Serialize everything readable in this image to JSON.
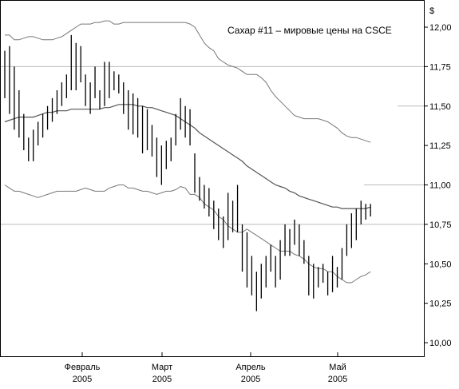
{
  "chart_data": {
    "type": "ohlc",
    "title": "Сахар #11 – мировые цены на CSCE",
    "ylabel": "$",
    "ylim": [
      10.0,
      12.0
    ],
    "yticks": [
      "10,00",
      "10,25",
      "10,50",
      "10,75",
      "11,00",
      "11,25",
      "11,50",
      "11,75",
      "12,00"
    ],
    "xticks": [
      {
        "line1": "Февраль",
        "line2": "2005"
      },
      {
        "line1": "Март",
        "line2": "2005"
      },
      {
        "line1": "Апрель",
        "line2": "2005"
      },
      {
        "line1": "Май",
        "line2": "2005"
      }
    ],
    "grid_y": [
      10.75,
      11.75
    ],
    "colors": {
      "bars": "#000000",
      "ma": "#555555",
      "bands": "#777777",
      "grid": "#bbbbbb"
    },
    "bars": [
      [
        11.85,
        11.55
      ],
      [
        11.88,
        11.45
      ],
      [
        11.75,
        11.35
      ],
      [
        11.6,
        11.3
      ],
      [
        11.45,
        11.22
      ],
      [
        11.3,
        11.15
      ],
      [
        11.35,
        11.15
      ],
      [
        11.4,
        11.25
      ],
      [
        11.45,
        11.3
      ],
      [
        11.5,
        11.35
      ],
      [
        11.55,
        11.4
      ],
      [
        11.6,
        11.45
      ],
      [
        11.65,
        11.5
      ],
      [
        11.7,
        11.55
      ],
      [
        11.95,
        11.6
      ],
      [
        11.9,
        11.6
      ],
      [
        11.88,
        11.65
      ],
      [
        11.7,
        11.5
      ],
      [
        11.65,
        11.45
      ],
      [
        11.75,
        11.55
      ],
      [
        11.6,
        11.48
      ],
      [
        11.78,
        11.5
      ],
      [
        11.78,
        11.55
      ],
      [
        11.72,
        11.6
      ],
      [
        11.7,
        11.58
      ],
      [
        11.65,
        11.45
      ],
      [
        11.6,
        11.35
      ],
      [
        11.58,
        11.32
      ],
      [
        11.55,
        11.3
      ],
      [
        11.5,
        11.2
      ],
      [
        11.48,
        11.22
      ],
      [
        11.38,
        11.18
      ],
      [
        11.3,
        11.05
      ],
      [
        11.25,
        11.0
      ],
      [
        11.28,
        11.1
      ],
      [
        11.3,
        11.15
      ],
      [
        11.45,
        11.25
      ],
      [
        11.55,
        11.35
      ],
      [
        11.5,
        11.3
      ],
      [
        11.48,
        11.25
      ],
      [
        11.2,
        10.95
      ],
      [
        11.05,
        10.9
      ],
      [
        11.0,
        10.85
      ],
      [
        10.98,
        10.8
      ],
      [
        10.9,
        10.72
      ],
      [
        10.85,
        10.65
      ],
      [
        10.8,
        10.6
      ],
      [
        10.95,
        10.65
      ],
      [
        10.9,
        10.7
      ],
      [
        11.0,
        10.7
      ],
      [
        10.75,
        10.45
      ],
      [
        10.7,
        10.35
      ],
      [
        10.55,
        10.3
      ],
      [
        10.45,
        10.2
      ],
      [
        10.5,
        10.28
      ],
      [
        10.55,
        10.35
      ],
      [
        10.62,
        10.45
      ],
      [
        10.55,
        10.35
      ],
      [
        10.65,
        10.4
      ],
      [
        10.75,
        10.55
      ],
      [
        10.72,
        10.55
      ],
      [
        10.78,
        10.62
      ],
      [
        10.75,
        10.55
      ],
      [
        10.65,
        10.5
      ],
      [
        10.55,
        10.3
      ],
      [
        10.5,
        10.28
      ],
      [
        10.48,
        10.35
      ],
      [
        10.5,
        10.38
      ],
      [
        10.45,
        10.3
      ],
      [
        10.55,
        10.32
      ],
      [
        10.48,
        10.35
      ],
      [
        10.6,
        10.4
      ],
      [
        10.75,
        10.55
      ],
      [
        10.82,
        10.6
      ],
      [
        10.85,
        10.65
      ],
      [
        10.9,
        10.75
      ],
      [
        10.88,
        10.78
      ],
      [
        10.88,
        10.8
      ]
    ],
    "ma": [
      11.4,
      11.41,
      11.42,
      11.43,
      11.43,
      11.43,
      11.43,
      11.44,
      11.45,
      11.46,
      11.46,
      11.47,
      11.47,
      11.47,
      11.48,
      11.48,
      11.48,
      11.48,
      11.48,
      11.48,
      11.48,
      11.49,
      11.49,
      11.5,
      11.51,
      11.51,
      11.51,
      11.51,
      11.5,
      11.5,
      11.49,
      11.49,
      11.48,
      11.47,
      11.46,
      11.45,
      11.44,
      11.42,
      11.4,
      11.38,
      11.36,
      11.33,
      11.31,
      11.29,
      11.27,
      11.25,
      11.23,
      11.21,
      11.19,
      11.17,
      11.15,
      11.12,
      11.1,
      11.08,
      11.06,
      11.04,
      11.02,
      11.0,
      10.99,
      10.98,
      10.96,
      10.95,
      10.93,
      10.92,
      10.91,
      10.9,
      10.89,
      10.88,
      10.87,
      10.86,
      10.86,
      10.85,
      10.85,
      10.85,
      10.85,
      10.85,
      10.85,
      10.86
    ],
    "upper_band": [
      11.95,
      11.95,
      11.92,
      11.92,
      11.93,
      11.94,
      11.94,
      11.93,
      11.92,
      11.92,
      11.92,
      11.93,
      11.94,
      11.96,
      11.98,
      12.0,
      12.02,
      12.02,
      12.02,
      12.03,
      12.03,
      12.04,
      12.04,
      12.02,
      12.02,
      12.03,
      12.03,
      12.03,
      12.03,
      12.03,
      12.03,
      12.03,
      12.03,
      12.03,
      12.03,
      12.03,
      12.03,
      12.03,
      12.03,
      12.02,
      12.0,
      11.95,
      11.9,
      11.87,
      11.85,
      11.8,
      11.78,
      11.76,
      11.75,
      11.74,
      11.72,
      11.7,
      11.7,
      11.7,
      11.68,
      11.65,
      11.6,
      11.56,
      11.53,
      11.5,
      11.47,
      11.44,
      11.43,
      11.42,
      11.42,
      11.42,
      11.42,
      11.41,
      11.4,
      11.38,
      11.36,
      11.33,
      11.31,
      11.3,
      11.3,
      11.29,
      11.28,
      11.27
    ],
    "lower_band": [
      11.0,
      10.98,
      10.96,
      10.96,
      10.95,
      10.94,
      10.93,
      10.92,
      10.93,
      10.94,
      10.95,
      10.96,
      10.96,
      10.96,
      10.96,
      10.96,
      10.97,
      10.98,
      10.97,
      10.96,
      10.96,
      10.96,
      10.98,
      10.99,
      11.0,
      11.0,
      10.98,
      10.98,
      10.97,
      10.96,
      10.96,
      10.95,
      10.94,
      10.95,
      10.96,
      10.96,
      10.97,
      10.99,
      10.98,
      10.94,
      10.94,
      10.92,
      10.88,
      10.86,
      10.84,
      10.8,
      10.78,
      10.74,
      10.72,
      10.7,
      10.7,
      10.72,
      10.7,
      10.68,
      10.66,
      10.64,
      10.62,
      10.6,
      10.58,
      10.58,
      10.58,
      10.56,
      10.55,
      10.53,
      10.5,
      10.48,
      10.47,
      10.47,
      10.45,
      10.45,
      10.42,
      10.4,
      10.38,
      10.38,
      10.4,
      10.42,
      10.43,
      10.45
    ]
  }
}
